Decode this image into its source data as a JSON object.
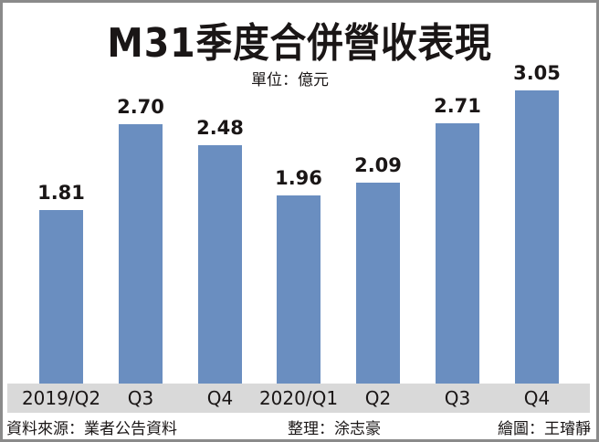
{
  "title": "M31季度合併營收表現",
  "unit": "單位：億元",
  "footer": {
    "source": "資料來源：業者公告資料",
    "editor": "整理：涂志豪",
    "illustrator": "繪圖：王璿靜"
  },
  "colors": {
    "bar": "#6a8ec0",
    "axis_band": "#d9d9d9",
    "border": "#8a8a8a"
  },
  "chart_data": {
    "type": "bar",
    "title": "M31季度合併營收表現",
    "subtitle": "單位：億元",
    "categories": [
      "2019/Q2",
      "Q3",
      "Q4",
      "2020/Q1",
      "Q2",
      "Q3",
      "Q4"
    ],
    "values": [
      1.81,
      2.7,
      2.48,
      1.96,
      2.09,
      2.71,
      3.05
    ],
    "value_labels": [
      "1.81",
      "2.70",
      "2.48",
      "1.96",
      "2.09",
      "2.71",
      "3.05"
    ],
    "xlabel": "",
    "ylabel": "億元",
    "ylim": [
      0,
      3.1
    ],
    "grid": false,
    "legend": null
  }
}
